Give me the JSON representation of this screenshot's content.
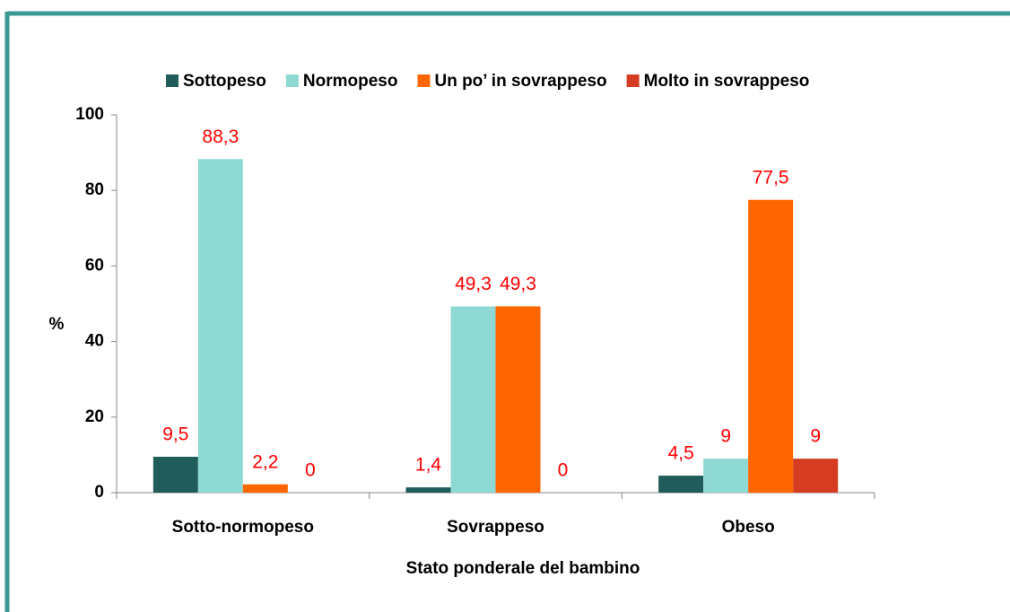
{
  "chart_data": {
    "type": "bar",
    "x_label": "Stato ponderale  del bambino",
    "y_label": "%",
    "categories": [
      "Sotto-normopeso",
      "Sovrappeso",
      "Obeso"
    ],
    "series": [
      {
        "name": "Sottopeso",
        "color": "#1f5c5a",
        "values": [
          9.5,
          1.4,
          4.5
        ],
        "value_labels": [
          "9,5",
          "1,4",
          "4,5"
        ]
      },
      {
        "name": "Normopeso",
        "color": "#8fd9d4",
        "values": [
          88.3,
          49.3,
          9
        ],
        "value_labels": [
          "88,3",
          "49,3",
          "9"
        ]
      },
      {
        "name": "Un po’ in sovrappeso",
        "color": "#ff6600",
        "values": [
          2.2,
          49.3,
          77.5
        ],
        "value_labels": [
          "2,2",
          "49,3",
          "77,5"
        ]
      },
      {
        "name": "Molto in sovrappeso",
        "color": "#d63c22",
        "values": [
          0,
          0,
          9
        ],
        "value_labels": [
          "0",
          "0",
          "9"
        ]
      }
    ],
    "ylim": [
      0,
      100
    ],
    "yticks": [
      0,
      20,
      40,
      60,
      80,
      100
    ],
    "legend": "top"
  }
}
